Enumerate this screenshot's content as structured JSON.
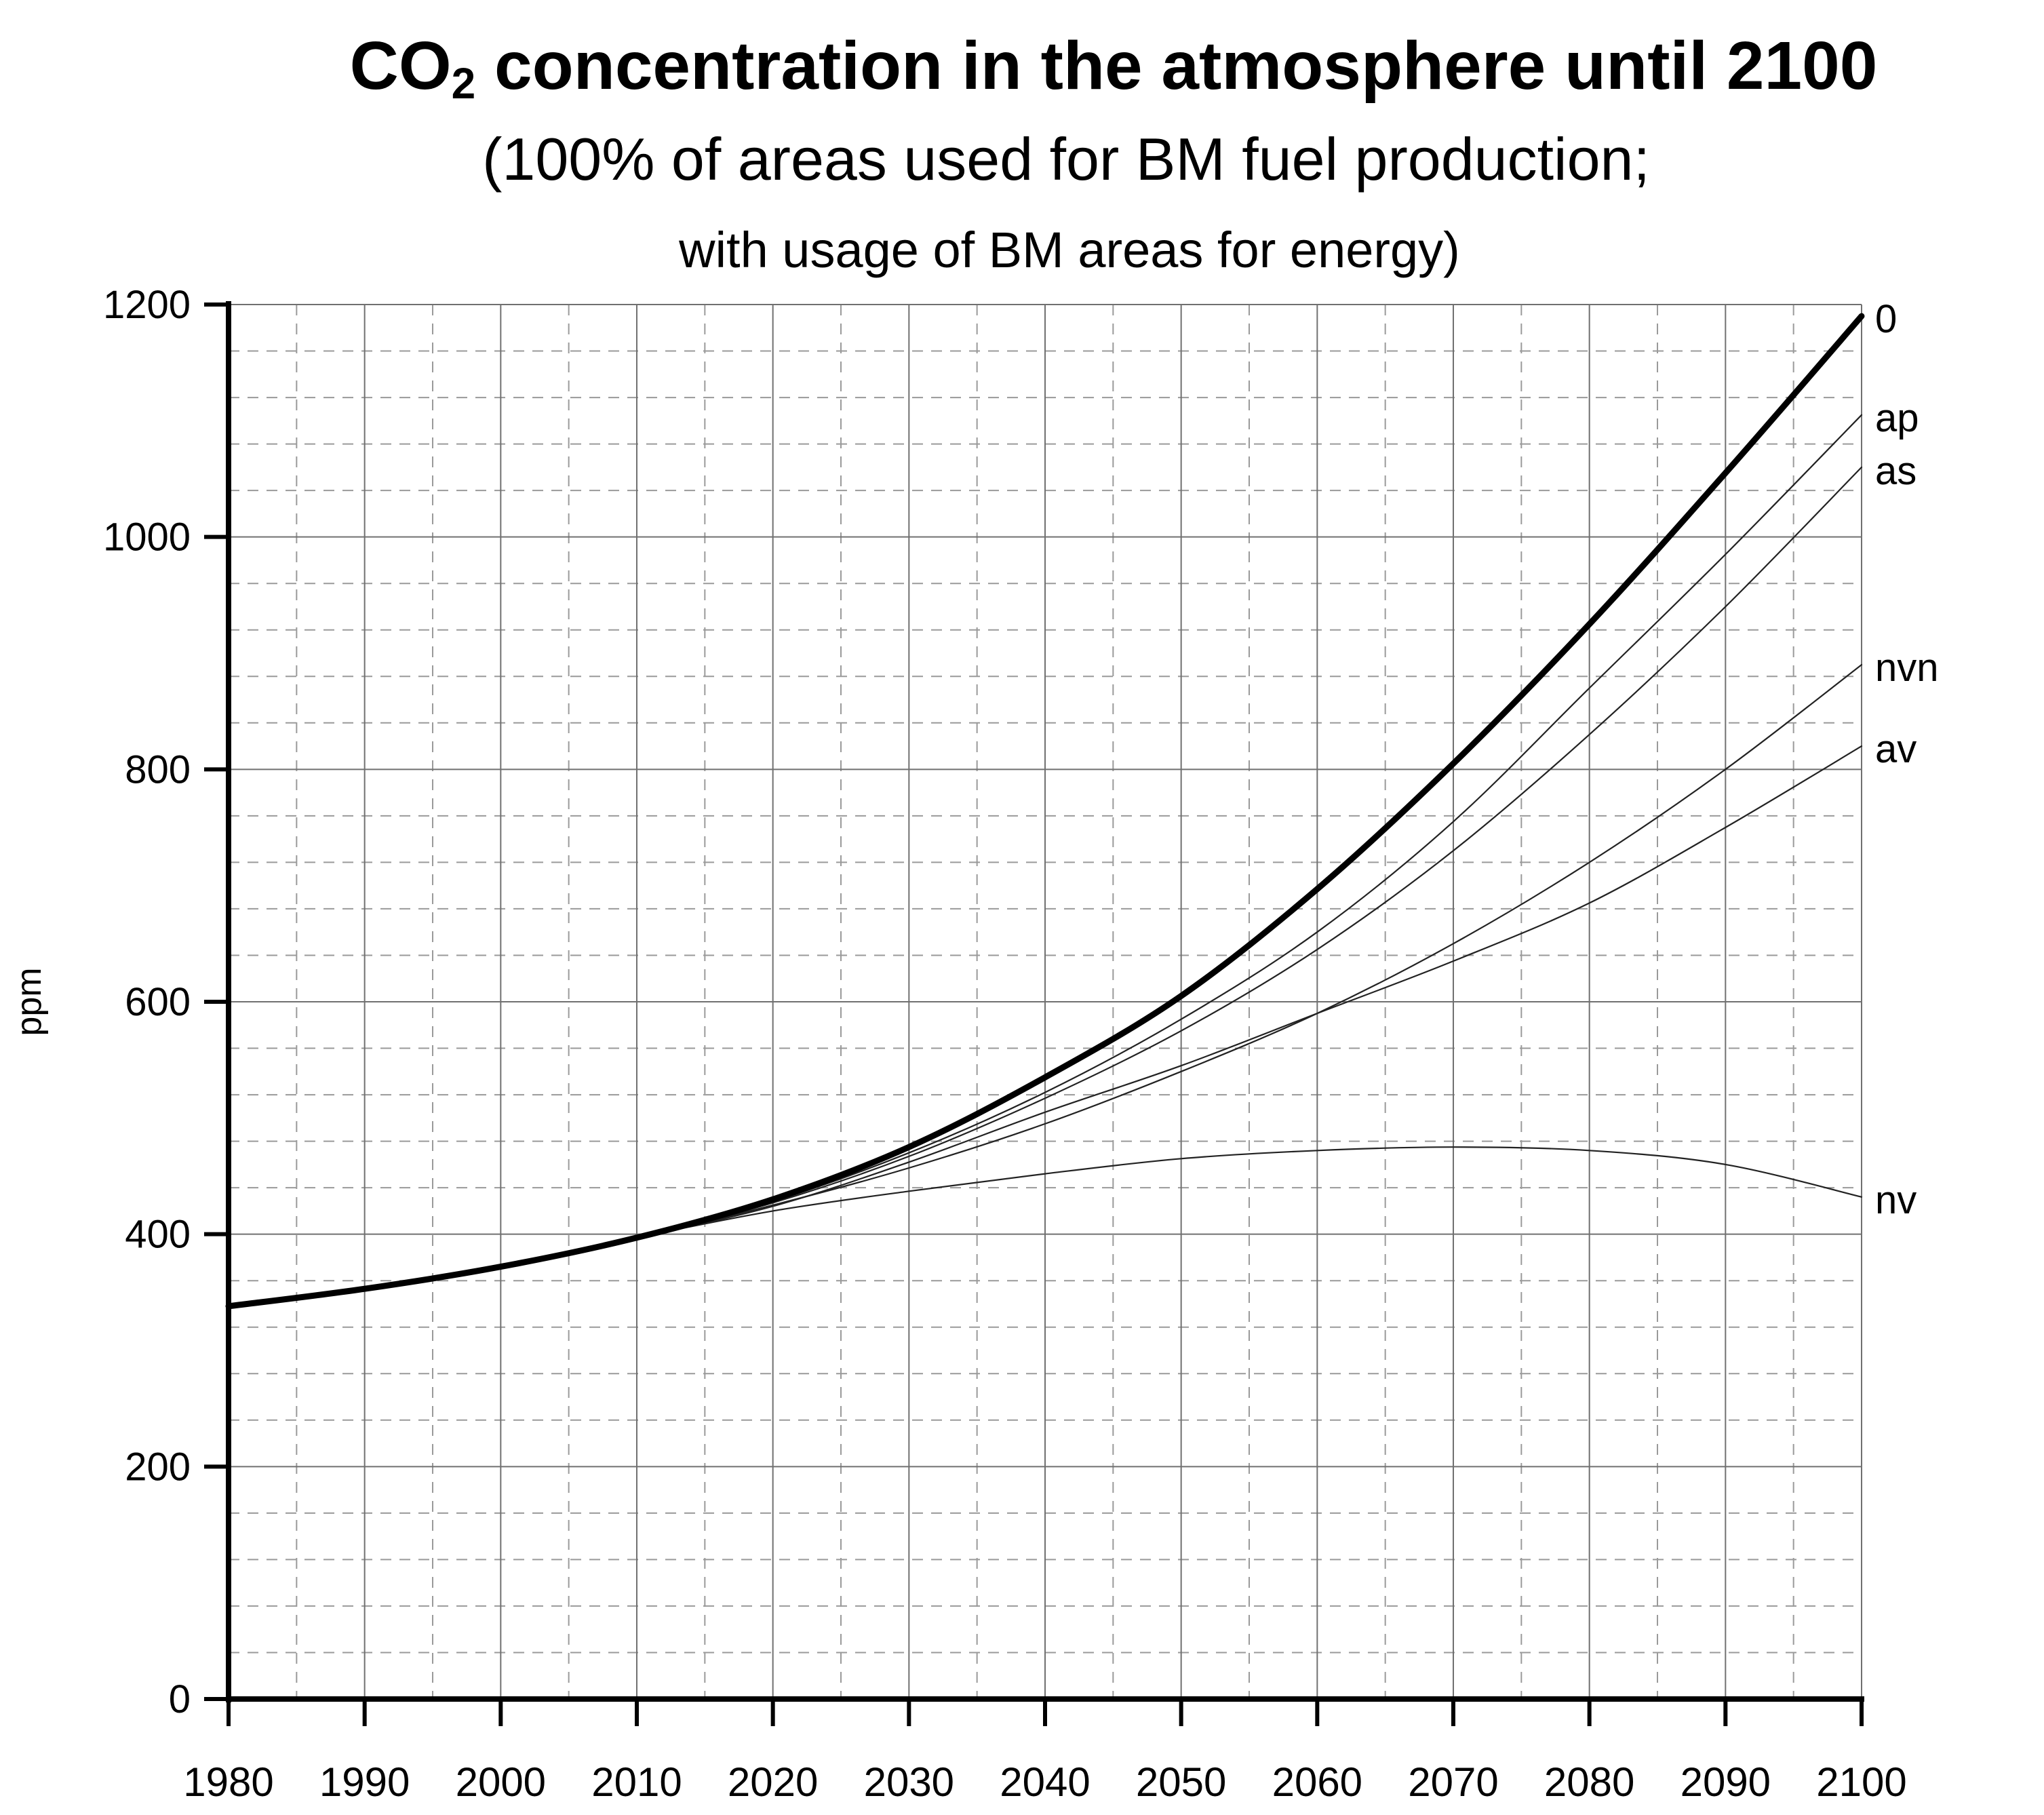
{
  "chart_data": {
    "type": "line",
    "title_main": "CO",
    "title_subscript": "2",
    "title_rest": " concentration in the atmosphere until 2100",
    "subtitle_line1": "(100% of areas used for BM fuel production;",
    "subtitle_line2": "with usage of BM areas for energy)",
    "xlabel": "",
    "ylabel": "ppm",
    "xlim": [
      1980,
      2100
    ],
    "ylim": [
      0,
      1200
    ],
    "x_ticks": [
      "1980",
      "1990",
      "2000",
      "2010",
      "2020",
      "2030",
      "2040",
      "2050",
      "2060",
      "2070",
      "2080",
      "2090",
      "2100"
    ],
    "y_ticks": [
      "0",
      "200",
      "400",
      "600",
      "800",
      "1000",
      "1200"
    ],
    "grid": true,
    "legend": "inline labels at right end of lines",
    "x": [
      1980,
      1990,
      2000,
      2010,
      2020,
      2030,
      2040,
      2050,
      2060,
      2070,
      2080,
      2090,
      2100
    ],
    "series": [
      {
        "name": "0",
        "emphasis": "bold",
        "values": [
          338,
          353,
          372,
          397,
          430,
          475,
          535,
          605,
          697,
          805,
          925,
          1055,
          1190
        ]
      },
      {
        "name": "ap",
        "emphasis": "thin",
        "values": [
          338,
          353,
          372,
          397,
          428,
          470,
          522,
          585,
          660,
          755,
          870,
          985,
          1105
        ]
      },
      {
        "name": "as",
        "emphasis": "thin",
        "values": [
          338,
          353,
          372,
          397,
          427,
          467,
          517,
          575,
          645,
          730,
          830,
          940,
          1060
        ]
      },
      {
        "name": "nvn",
        "emphasis": "thin",
        "values": [
          338,
          353,
          372,
          397,
          425,
          457,
          495,
          540,
          590,
          650,
          720,
          800,
          890
        ]
      },
      {
        "name": "av",
        "emphasis": "thin",
        "values": [
          338,
          353,
          372,
          397,
          424,
          462,
          505,
          545,
          590,
          635,
          685,
          750,
          820
        ]
      },
      {
        "name": "nv",
        "emphasis": "thin",
        "values": [
          338,
          353,
          372,
          397,
          420,
          437,
          452,
          465,
          472,
          475,
          472,
          460,
          432
        ]
      }
    ]
  }
}
